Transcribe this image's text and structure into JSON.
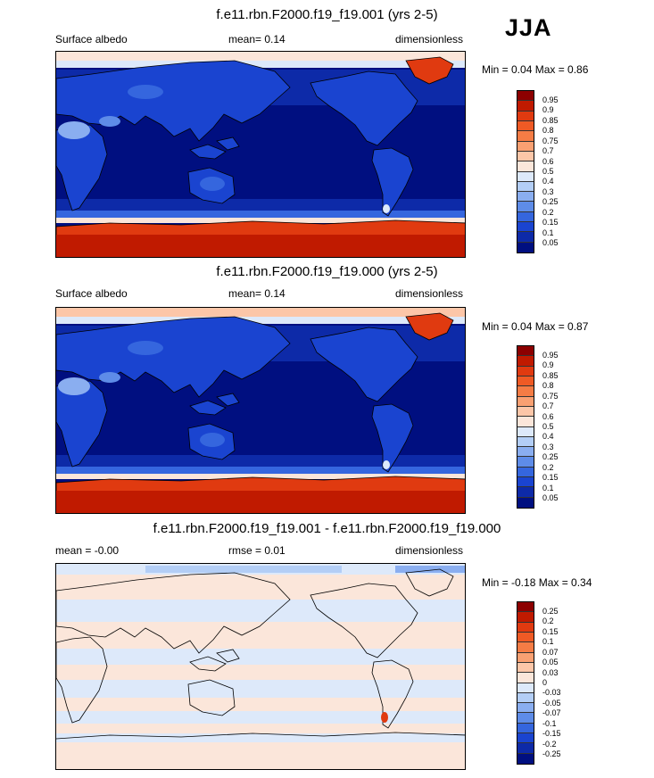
{
  "season": "JJA",
  "panels": [
    {
      "title": "f.e11.rbn.F2000.f19_f19.001 (yrs 2-5)",
      "left_label": "Surface albedo",
      "center_label": "mean=  0.14",
      "right_label": "dimensionless",
      "minmax": "Min =  0.04 Max =  0.86",
      "colorbar": {
        "labels": [
          "0.95",
          "0.9",
          "0.85",
          "0.8",
          "0.75",
          "0.7",
          "0.6",
          "0.5",
          "0.4",
          "0.3",
          "0.25",
          "0.2",
          "0.15",
          "0.1",
          "0.05"
        ],
        "colors": [
          "#8c0000",
          "#c01a00",
          "#e03a10",
          "#ef5a25",
          "#f57c45",
          "#f9a072",
          "#fcc6a8",
          "#fbe6da",
          "#dde9fa",
          "#b3cef6",
          "#8aaef0",
          "#5e8ce8",
          "#3566de",
          "#1a44d0",
          "#0d2aa8",
          "#000f80"
        ]
      }
    },
    {
      "title": "f.e11.rbn.F2000.f19_f19.000 (yrs 2-5)",
      "left_label": "Surface albedo",
      "center_label": "mean=  0.14",
      "right_label": "dimensionless",
      "minmax": "Min =  0.04 Max =  0.87",
      "colorbar": {
        "labels": [
          "0.95",
          "0.9",
          "0.85",
          "0.8",
          "0.75",
          "0.7",
          "0.6",
          "0.5",
          "0.4",
          "0.3",
          "0.25",
          "0.2",
          "0.15",
          "0.1",
          "0.05"
        ],
        "colors": [
          "#8c0000",
          "#c01a00",
          "#e03a10",
          "#ef5a25",
          "#f57c45",
          "#f9a072",
          "#fcc6a8",
          "#fbe6da",
          "#dde9fa",
          "#b3cef6",
          "#8aaef0",
          "#5e8ce8",
          "#3566de",
          "#1a44d0",
          "#0d2aa8",
          "#000f80"
        ]
      }
    },
    {
      "title": "f.e11.rbn.F2000.f19_f19.001 - f.e11.rbn.F2000.f19_f19.000",
      "left_label": "mean = -0.00",
      "center_label": "rmse =  0.01",
      "right_label": "dimensionless",
      "minmax": "Min = -0.18 Max =  0.34",
      "colorbar": {
        "labels": [
          "0.25",
          "0.2",
          "0.15",
          "0.1",
          "0.07",
          "0.05",
          "0.03",
          "0",
          "-0.03",
          "-0.05",
          "-0.07",
          "-0.1",
          "-0.15",
          "-0.2",
          "-0.25"
        ],
        "colors": [
          "#8c0000",
          "#c01a00",
          "#e03a10",
          "#ef5a25",
          "#f57c45",
          "#f9a072",
          "#fcc6a8",
          "#fbe6da",
          "#dde9fa",
          "#b3cef6",
          "#8aaef0",
          "#5e8ce8",
          "#3566de",
          "#1a44d0",
          "#0d2aa8",
          "#000f80"
        ]
      }
    }
  ],
  "chart_data": [
    {
      "type": "heatmap",
      "title": "f.e11.rbn.F2000.f19_f19.001 (yrs 2-5)",
      "variable": "Surface albedo",
      "units": "dimensionless",
      "mean": 0.14,
      "min": 0.04,
      "max": 0.86,
      "contour_levels": [
        0.05,
        0.1,
        0.15,
        0.2,
        0.25,
        0.3,
        0.4,
        0.5,
        0.6,
        0.7,
        0.75,
        0.8,
        0.85,
        0.9,
        0.95
      ]
    },
    {
      "type": "heatmap",
      "title": "f.e11.rbn.F2000.f19_f19.000 (yrs 2-5)",
      "variable": "Surface albedo",
      "units": "dimensionless",
      "mean": 0.14,
      "min": 0.04,
      "max": 0.87,
      "contour_levels": [
        0.05,
        0.1,
        0.15,
        0.2,
        0.25,
        0.3,
        0.4,
        0.5,
        0.6,
        0.7,
        0.75,
        0.8,
        0.85,
        0.9,
        0.95
      ]
    },
    {
      "type": "heatmap",
      "title": "f.e11.rbn.F2000.f19_f19.001 - f.e11.rbn.F2000.f19_f19.000",
      "units": "dimensionless",
      "mean": -0.0,
      "rmse": 0.01,
      "min": -0.18,
      "max": 0.34,
      "contour_levels": [
        -0.25,
        -0.2,
        -0.15,
        -0.1,
        -0.07,
        -0.05,
        -0.03,
        0,
        0.03,
        0.05,
        0.07,
        0.1,
        0.15,
        0.2,
        0.25
      ]
    }
  ]
}
